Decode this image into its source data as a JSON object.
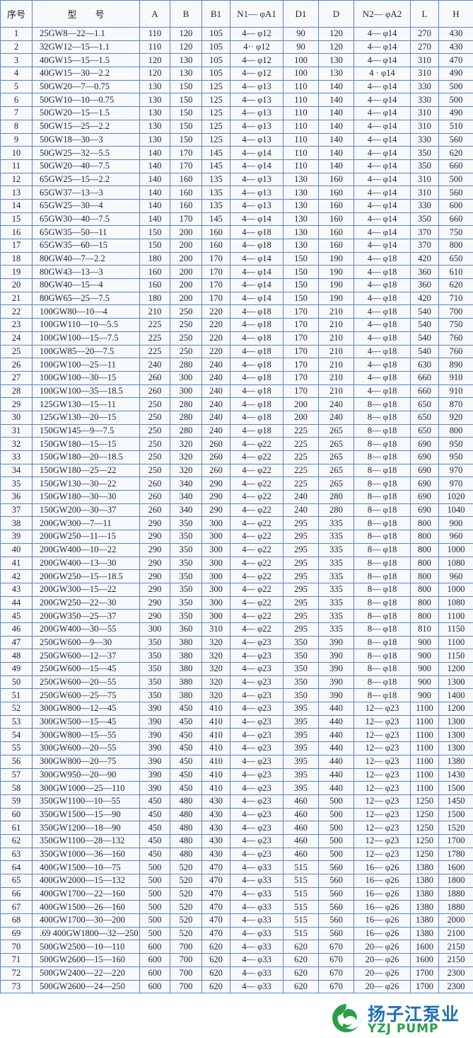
{
  "table": {
    "headers": [
      "序号",
      "型　　号",
      "A",
      "B",
      "B1",
      "N1— φA1",
      "D1",
      "D",
      "N2— φA2",
      "L",
      "H"
    ],
    "rows": [
      [
        "1",
        "25GW8—22—1.1",
        "110",
        "120",
        "105",
        "4— φ12",
        "90",
        "120",
        "4— φ14",
        "270",
        "430"
      ],
      [
        "2",
        "32GW12—15—1.1",
        "110",
        "120",
        "105",
        "4·· φ12",
        "90",
        "120",
        "4— φ14",
        "270",
        "430"
      ],
      [
        "3",
        "40GW15—15—1.5",
        "120",
        "130",
        "105",
        "4— φ12",
        "100",
        "130",
        "4— φ14",
        "310",
        "470"
      ],
      [
        "4",
        "40GW15—30—2.2",
        "120",
        "130",
        "105",
        "4— φ12",
        "100",
        "130",
        "4 · φ14",
        "310",
        "490"
      ],
      [
        "5",
        "50GW20—7—0.75",
        "130",
        "150",
        "125",
        "4— φ13",
        "110",
        "140",
        "4— φ14",
        "330",
        "500"
      ],
      [
        "6",
        "50GW10—10—0.75",
        "130",
        "150",
        "125",
        "4— φ13",
        "110",
        "140",
        "4— φ14",
        "330",
        "500"
      ],
      [
        "7",
        "50GW20—15—1.5",
        "130",
        "150",
        "125",
        "4— φ13",
        "110",
        "140",
        "4— φ14",
        "310",
        "490"
      ],
      [
        "8",
        "50GW15—25—2.2",
        "130",
        "150",
        "125",
        "4— φ13",
        "110",
        "140",
        "4— φ14",
        "310",
        "510"
      ],
      [
        "9",
        "50GW18—30—3",
        "130",
        "150",
        "125",
        "4— φ13",
        "110",
        "140",
        "4— φ14",
        "330",
        "560"
      ],
      [
        "10",
        "50GW25—32—5.5",
        "140",
        "170",
        "145",
        "4— φ14",
        "110",
        "140",
        "4— φ14",
        "350",
        "620"
      ],
      [
        "11",
        "50GW20—40—7.5",
        "140",
        "170",
        "145",
        "4— φ14",
        "110",
        "140",
        "4— φ14",
        "350",
        "660"
      ],
      [
        "12",
        "65GW25—15—2.2",
        "140",
        "160",
        "135",
        "4— φ13",
        "130",
        "160",
        "4— φ14",
        "310",
        "500"
      ],
      [
        "13",
        "65GW37—13—3",
        "140",
        "160",
        "135",
        "4— φ13",
        "130",
        "160",
        "4— φ14",
        "310",
        "560"
      ],
      [
        "14",
        "65GW25—30—4",
        "140",
        "160",
        "135",
        "4— φ13",
        "130",
        "160",
        "4— φ14",
        "330",
        "600"
      ],
      [
        "15",
        "65GW30—40—7.5",
        "140",
        "170",
        "145",
        "4— φ14",
        "130",
        "160",
        "4— φ14",
        "350",
        "660"
      ],
      [
        "16",
        "65GW35—50—11",
        "150",
        "200",
        "160",
        "4— φ18",
        "130",
        "160",
        "4— φ14",
        "370",
        "750"
      ],
      [
        "17",
        "65GW35—60—15",
        "150",
        "200",
        "160",
        "4— φ18",
        "130",
        "160",
        "4— φ14",
        "370",
        "800"
      ],
      [
        "18",
        "80GW40—7—2.2",
        "180",
        "200",
        "170",
        "4— φ14",
        "150",
        "190",
        "4— φ18",
        "420",
        "650"
      ],
      [
        "19",
        "80GW43—13—3",
        "160",
        "200",
        "170",
        "4— φ14",
        "150",
        "190",
        "4— φ18",
        "360",
        "610"
      ],
      [
        "20",
        "80GW40—15—4",
        "160",
        "200",
        "170",
        "4— φ14",
        "150",
        "190",
        "4— φ18",
        "360",
        "620"
      ],
      [
        "21",
        "80GW65—25—7.5",
        "180",
        "200",
        "170",
        "4— φ14",
        "150",
        "190",
        "4— φ18",
        "420",
        "710"
      ],
      [
        "22",
        "100GW80—10—4",
        "210",
        "250",
        "220",
        "4— φ18",
        "170",
        "210",
        "4— φ18",
        "540",
        "700"
      ],
      [
        "23",
        "100GW110—10—5.5",
        "225",
        "250",
        "220",
        "4— φ18",
        "170",
        "210",
        "4— φ18",
        "540",
        "750"
      ],
      [
        "24",
        "100GW100—15—7.5",
        "225",
        "250",
        "220",
        "4— φ18",
        "170",
        "210",
        "4— φ18",
        "540",
        "760"
      ],
      [
        "25",
        "100GW85—20—7.5",
        "225",
        "250",
        "220",
        "4— φ18",
        "170",
        "210",
        "4— φ18",
        "540",
        "760"
      ],
      [
        "26",
        "100GW100—25—11",
        "240",
        "280",
        "240",
        "4— φ18",
        "170",
        "210",
        "4— φ18",
        "630",
        "890"
      ],
      [
        "27",
        "100GW100—30—15",
        "260",
        "300",
        "240",
        "4— φ18",
        "170",
        "210",
        "4— φ18",
        "660",
        "910"
      ],
      [
        "28",
        "100GW100—35—18.5",
        "260",
        "300",
        "240",
        "4— φ18",
        "170",
        "210",
        "4— φ18",
        "660",
        "910"
      ],
      [
        "29",
        "125GW130—15—11",
        "250",
        "280",
        "240",
        "4— φ18",
        "200",
        "240",
        "8— φ18",
        "650",
        "870"
      ],
      [
        "30",
        "125GW130—20—15",
        "250",
        "280",
        "240",
        "4— φ18",
        "200",
        "240",
        "8— φ18",
        "650",
        "920"
      ],
      [
        "31",
        "150GW145—9—7.5",
        "250",
        "280",
        "240",
        "4— φ18",
        "225",
        "265",
        "8— φ18",
        "650",
        "800"
      ],
      [
        "32",
        "150GW180—15—15",
        "250",
        "320",
        "260",
        "4— φ22",
        "225",
        "265",
        "8— φ18",
        "690",
        "950"
      ],
      [
        "33",
        "150GW180—20—18.5",
        "250",
        "320",
        "260",
        "4— φ22",
        "225",
        "265",
        "8— φ18",
        "690",
        "950"
      ],
      [
        "34",
        "150GW180—25—22",
        "250",
        "320",
        "260",
        "4— φ22",
        "225",
        "265",
        "8— φ18",
        "690",
        "970"
      ],
      [
        "35",
        "150GW130—30—22",
        "260",
        "340",
        "290",
        "4— φ22",
        "225",
        "265",
        "8— φ18",
        "690",
        "970"
      ],
      [
        "36",
        "150GW180—30—30",
        "260",
        "340",
        "290",
        "4— φ22",
        "240",
        "280",
        "8— φ18",
        "690",
        "1020"
      ],
      [
        "37",
        "150GW200—30—37",
        "260",
        "340",
        "290",
        "4— φ22",
        "240",
        "280",
        "8— φ18",
        "690",
        "1040"
      ],
      [
        "38",
        "200GW300—7—11",
        "290",
        "350",
        "300",
        "4— φ22",
        "295",
        "335",
        "8— φ18",
        "800",
        "900"
      ],
      [
        "39",
        "200GW250—11—15",
        "290",
        "350",
        "300",
        "4— φ22",
        "295",
        "335",
        "8— φ18",
        "800",
        "960"
      ],
      [
        "40",
        "200GW400—10—22",
        "290",
        "350",
        "300",
        "4— φ22",
        "295",
        "335",
        "8— φ18",
        "800",
        "1000"
      ],
      [
        "41",
        "200GW400—13—30",
        "290",
        "350",
        "300",
        "4— φ22",
        "295",
        "335",
        "8— φ18",
        "800",
        "1080"
      ],
      [
        "42",
        "200GW250—15—18.5",
        "290",
        "350",
        "300",
        "4— φ22",
        "295",
        "335",
        "8— φ18",
        "800",
        "960"
      ],
      [
        "43",
        "200GW300—15—22",
        "290",
        "350",
        "300",
        "4— φ22",
        "295",
        "335",
        "8— φ18",
        "800",
        "1000"
      ],
      [
        "44",
        "200GW250—22—30",
        "290",
        "350",
        "300",
        "4— φ22",
        "295",
        "335",
        "8— φ18",
        "800",
        "1080"
      ],
      [
        "45",
        "200GW350—25—37",
        "290",
        "350",
        "300",
        "4— φ22",
        "295",
        "335",
        "8— φ18",
        "800",
        "1100"
      ],
      [
        "46",
        "200GW400—30—55",
        "300",
        "360",
        "310",
        "4— φ22",
        "295",
        "335",
        "8— φ18",
        "810",
        "1150"
      ],
      [
        "47",
        "250GW600—9—30",
        "350",
        "380",
        "320",
        "4— φ23",
        "350",
        "390",
        "8— φ18",
        "900",
        "1100"
      ],
      [
        "48",
        "250GW600—12—37",
        "350",
        "380",
        "320",
        "4— φ23",
        "350",
        "390",
        "8— φ18",
        "900",
        "1150"
      ],
      [
        "49",
        "250GW600—15—45",
        "350",
        "380",
        "320",
        "4— φ23",
        "350",
        "390",
        "8— φ18",
        "900",
        "1200"
      ],
      [
        "50",
        "250GW600—20—55",
        "350",
        "380",
        "320",
        "4— φ23",
        "350",
        "390",
        "8— φ18",
        "900",
        "1300"
      ],
      [
        "51",
        "250GW600—25—75",
        "350",
        "380",
        "320",
        "4— φ23",
        "350",
        "390",
        "8— φ18",
        "900",
        "1400"
      ],
      [
        "52",
        "300GW800—12—45",
        "390",
        "450",
        "410",
        "4— φ23",
        "395",
        "440",
        "12— φ23",
        "1100",
        "1200"
      ],
      [
        "53",
        "300GW500—15—45",
        "390",
        "450",
        "410",
        "4— φ23",
        "395",
        "440",
        "12— φ23",
        "1100",
        "1300"
      ],
      [
        "54",
        "300GW800—15—55",
        "390",
        "450",
        "410",
        "4— φ23",
        "395",
        "440",
        "12— φ23",
        "1100",
        "1300"
      ],
      [
        "55",
        "300GW600—20—55",
        "390",
        "450",
        "410",
        "4— φ23",
        "395",
        "440",
        "12— φ23",
        "1100",
        "1300"
      ],
      [
        "56",
        "300GW800—20—75",
        "390",
        "450",
        "410",
        "4— φ23",
        "395",
        "440",
        "12— φ23",
        "1100",
        "1380"
      ],
      [
        "57",
        "300GW950—20—90",
        "390",
        "450",
        "410",
        "4— φ23",
        "395",
        "440",
        "12— φ23",
        "1100",
        "1430"
      ],
      [
        "58",
        "300GW1000—25—110",
        "390",
        "450",
        "410",
        "4— φ23",
        "395",
        "440",
        "12— φ23",
        "1100",
        "1500"
      ],
      [
        "59",
        "350GW1100—10—55",
        "450",
        "480",
        "430",
        "4— φ23",
        "460",
        "500",
        "12— φ23",
        "1250",
        "1450"
      ],
      [
        "60",
        "350GW1500—15—90",
        "450",
        "480",
        "430",
        "4— φ23",
        "460",
        "500",
        "12— φ23",
        "1250",
        "1500"
      ],
      [
        "61",
        "350GW1200—18—90",
        "450",
        "480",
        "430",
        "4— φ23",
        "460",
        "500",
        "12— φ23",
        "1250",
        "1520"
      ],
      [
        "62",
        "350GW1100—28—132",
        "450",
        "480",
        "430",
        "4— φ23",
        "460",
        "500",
        "12— φ23",
        "1250",
        "1700"
      ],
      [
        "63",
        "350GW1000—36—160",
        "450",
        "480",
        "430",
        "4— φ23",
        "460",
        "500",
        "12— φ23",
        "1250",
        "1780"
      ],
      [
        "64",
        "400GW1500—10—75",
        "500",
        "520",
        "470",
        "4— φ33",
        "515",
        "560",
        "16— φ26",
        "1380",
        "1600"
      ],
      [
        "65",
        "400GW2000—15—132",
        "500",
        "520",
        "470",
        "4— φ33",
        "515",
        "560",
        "16— φ26",
        "1380",
        "1800"
      ],
      [
        "66",
        "400GW1700—22—160",
        "500",
        "520",
        "470",
        "4— φ33",
        "515",
        "560",
        "16— φ26",
        "1380",
        "1880"
      ],
      [
        "67",
        "400GW1500—26—160",
        "500",
        "520",
        "470",
        "4— φ33",
        "515",
        "560",
        "16— φ26",
        "1380",
        "1880"
      ],
      [
        "68",
        "400GW1700—30—200",
        "500",
        "520",
        "470",
        "4— φ33",
        "515",
        "560",
        "16— φ26",
        "1380",
        "2000"
      ],
      [
        "69",
        ".69 400GW1800—32—250",
        "500",
        "520",
        "470",
        "4— φ33",
        "515",
        "560",
        "16— φ26",
        "1380",
        "2100"
      ],
      [
        "70",
        "500GW2500—10—110",
        "600",
        "700",
        "620",
        "4— φ33",
        "620",
        "670",
        "20— φ26",
        "1600",
        "2150"
      ],
      [
        "71",
        "500GW2600—15—160",
        "600",
        "700",
        "620",
        "4— φ33",
        "620",
        "670",
        "20— φ26",
        "1600",
        "2150"
      ],
      [
        "72",
        "500GW2400—22—220",
        "600",
        "700",
        "620",
        "4— φ33",
        "620",
        "670",
        "20— φ26",
        "1700",
        "2300"
      ],
      [
        "73",
        "500GW2600—24—250",
        "600",
        "700",
        "620",
        "4— φ33",
        "620",
        "670",
        "20— φ26",
        "1700",
        "2300"
      ]
    ]
  },
  "logo": {
    "name_cn": "扬子江泵业",
    "name_en": "YZJ PUMP",
    "icon": "swirl-logo-icon"
  },
  "colors": {
    "border": "#5a86c4",
    "logo_green": "#2aa046",
    "logo_blue": "#1f6fb5"
  }
}
